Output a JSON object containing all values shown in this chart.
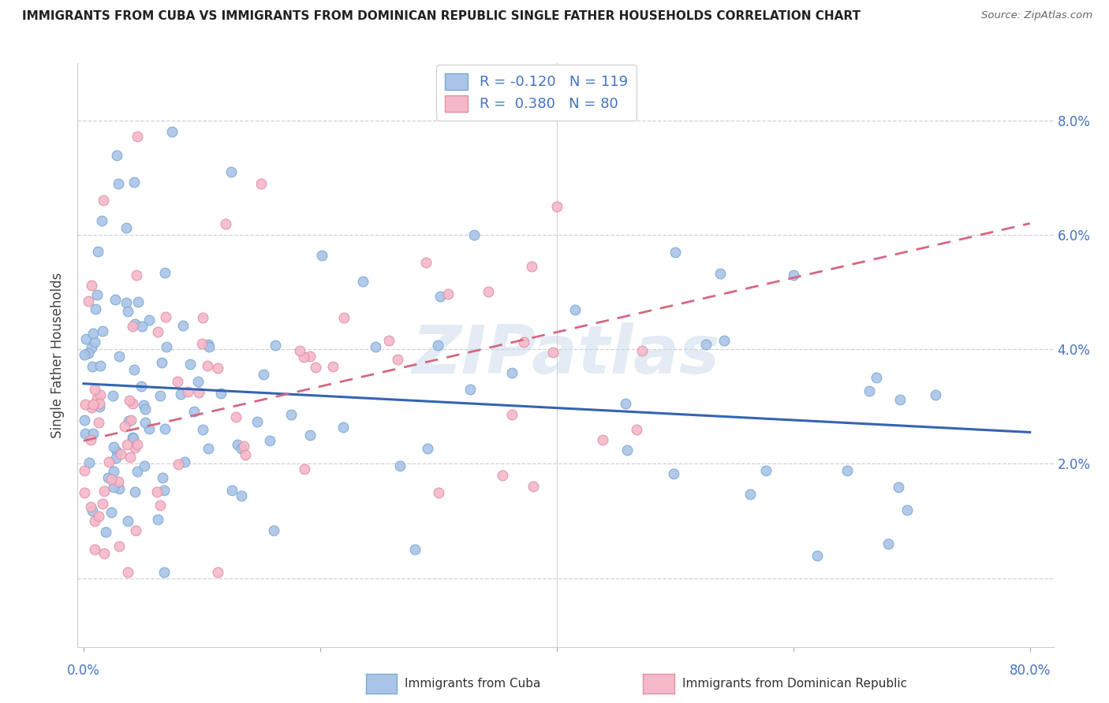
{
  "title": "IMMIGRANTS FROM CUBA VS IMMIGRANTS FROM DOMINICAN REPUBLIC SINGLE FATHER HOUSEHOLDS CORRELATION CHART",
  "source": "Source: ZipAtlas.com",
  "ylabel": "Single Father Households",
  "ytick_vals": [
    0.0,
    0.02,
    0.04,
    0.06,
    0.08
  ],
  "ytick_labels": [
    "",
    "2.0%",
    "4.0%",
    "6.0%",
    "8.0%"
  ],
  "xlim": [
    -0.005,
    0.82
  ],
  "ylim": [
    -0.012,
    0.09
  ],
  "legend_line1": "R = -0.120   N = 119",
  "legend_line2": "R =  0.380   N = 80",
  "color_cuba_fill": "#aac4e8",
  "color_cuba_edge": "#7aaad4",
  "color_dr_fill": "#f4b8c8",
  "color_dr_edge": "#e090a8",
  "color_line_cuba": "#3464b4",
  "color_line_dr": "#d46880",
  "color_axis": "#4472c4",
  "color_title": "#222222",
  "color_source": "#666666",
  "color_grid": "#cccccc",
  "color_watermark": "#c8d8ec",
  "watermark": "ZIPatlas",
  "legend_blue_fill": "#aac4e8",
  "legend_blue_edge": "#7aaad4",
  "legend_pink_fill": "#f4b8c8",
  "legend_pink_edge": "#e090a8",
  "bottom_label_cuba": "Immigrants from Cuba",
  "bottom_label_dr": "Immigrants from Dominican Republic",
  "cuba_line_x0": 0.0,
  "cuba_line_y0": 0.034,
  "cuba_line_x1": 0.8,
  "cuba_line_y1": 0.0255,
  "dr_line_x0": 0.0,
  "dr_line_y0": 0.024,
  "dr_line_x1": 0.8,
  "dr_line_y1": 0.062
}
